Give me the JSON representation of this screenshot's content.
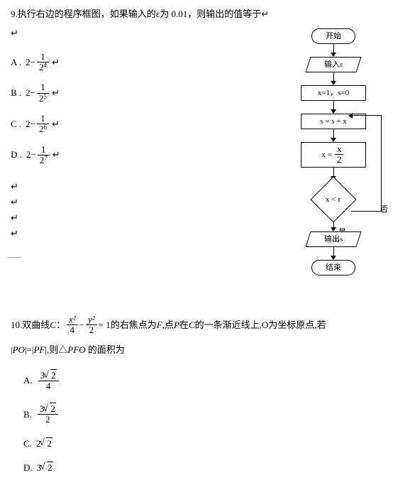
{
  "q9": {
    "number": "9.",
    "text": "执行右边的程序框图，如果输入的ε为 0.01，则输出的值等于",
    "tail": "↵",
    "options": [
      {
        "label": "A .",
        "expr_prefix": "2−",
        "num": "1",
        "den_base": "2",
        "den_exp": "4"
      },
      {
        "label": "B .",
        "expr_prefix": "2−",
        "num": "1",
        "den_base": "2",
        "den_exp": "5"
      },
      {
        "label": "C .",
        "expr_prefix": "2−",
        "num": "1",
        "den_base": "2",
        "den_exp": "6"
      },
      {
        "label": "D .",
        "expr_prefix": "2−",
        "num": "1",
        "den_base": "2",
        "den_exp": "7"
      }
    ],
    "spacer_marks": [
      "↵",
      "↵",
      "↵",
      "↵"
    ],
    "flowchart": {
      "start": "开始",
      "input": "输入ε",
      "init": "x=1，s=0",
      "accum": "s = s + x",
      "halve_left": "x =",
      "halve_num": "x",
      "halve_den": "2",
      "cond": "x < ε",
      "branch_no": "否",
      "branch_yes": "是",
      "output": "输出s",
      "end": "结束"
    }
  },
  "q10": {
    "number": "10.",
    "text_pre": "双曲线",
    "curve_label": "C",
    "colon": "：",
    "frac1_num": "x²",
    "frac1_den": "4",
    "minus": "−",
    "frac2_num": "y²",
    "frac2_den": "2",
    "eq": " = 1",
    "text_post1": "的右焦点为",
    "F": "F",
    "text_post2": ",点",
    "P": "P",
    "text_post3": " 在",
    "C2": "C",
    "text_post4": " 的一条渐近线上,O为坐标原点,若",
    "line2_pre": "|",
    "PO": "PO",
    "mid": "|=|",
    "PF": "PF",
    "line2_post": "|,则△",
    "tri": "PFO",
    "line2_end": " 的面积为",
    "options": [
      {
        "label": "A.",
        "type": "frac_sqrt",
        "coef": "3",
        "rad": "2",
        "den": "4"
      },
      {
        "label": "B.",
        "type": "frac_sqrt",
        "coef": "3",
        "rad": "2",
        "den": "2"
      },
      {
        "label": "C.",
        "type": "coef_sqrt",
        "coef": "2",
        "rad": "2"
      },
      {
        "label": "D.",
        "type": "coef_sqrt",
        "coef": "3",
        "rad": "2"
      }
    ]
  }
}
